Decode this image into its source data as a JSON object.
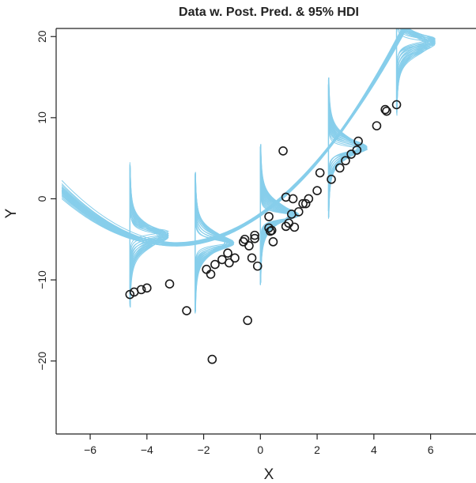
{
  "chart_data": {
    "type": "scatter",
    "title": "Data w. Post. Pred. & 95% HDI",
    "xlabel": "X",
    "ylabel": "Y",
    "xlim": [
      -7.2,
      7.6
    ],
    "ylim": [
      -29,
      21
    ],
    "xticks": [
      -6,
      -4,
      -2,
      0,
      2,
      4,
      6
    ],
    "yticks": [
      -20,
      -10,
      0,
      10,
      20
    ],
    "grid": false,
    "colors": {
      "curves": "#87CEEB",
      "points": "#1a1a1a",
      "axis": "#222222"
    },
    "points": [
      {
        "x": -4.6,
        "y": -11.8
      },
      {
        "x": -4.45,
        "y": -11.5
      },
      {
        "x": -4.2,
        "y": -11.2
      },
      {
        "x": -4.0,
        "y": -11.0
      },
      {
        "x": -3.2,
        "y": -10.5
      },
      {
        "x": -2.6,
        "y": -13.8
      },
      {
        "x": -1.9,
        "y": -8.7
      },
      {
        "x": -1.75,
        "y": -9.3
      },
      {
        "x": -1.6,
        "y": -8.1
      },
      {
        "x": -1.35,
        "y": -7.5
      },
      {
        "x": -1.15,
        "y": -6.7
      },
      {
        "x": -1.1,
        "y": -7.9
      },
      {
        "x": -0.9,
        "y": -7.3
      },
      {
        "x": -1.7,
        "y": -19.8
      },
      {
        "x": -0.6,
        "y": -5.3
      },
      {
        "x": -0.55,
        "y": -5.0
      },
      {
        "x": -0.4,
        "y": -5.8
      },
      {
        "x": -0.2,
        "y": -4.9
      },
      {
        "x": -0.2,
        "y": -4.5
      },
      {
        "x": -0.1,
        "y": -8.3
      },
      {
        "x": -0.3,
        "y": -7.3
      },
      {
        "x": -0.45,
        "y": -15.0
      },
      {
        "x": 0.3,
        "y": -2.2
      },
      {
        "x": 0.3,
        "y": -3.6
      },
      {
        "x": 0.35,
        "y": -4.0
      },
      {
        "x": 0.4,
        "y": -3.9
      },
      {
        "x": 0.45,
        "y": -5.3
      },
      {
        "x": 0.8,
        "y": 5.9
      },
      {
        "x": 0.9,
        "y": 0.2
      },
      {
        "x": 0.9,
        "y": -3.4
      },
      {
        "x": 1.0,
        "y": -3.0
      },
      {
        "x": 1.1,
        "y": -1.9
      },
      {
        "x": 1.15,
        "y": 0.0
      },
      {
        "x": 1.2,
        "y": -3.5
      },
      {
        "x": 1.35,
        "y": -1.6
      },
      {
        "x": 1.5,
        "y": -0.6
      },
      {
        "x": 1.6,
        "y": -0.6
      },
      {
        "x": 1.7,
        "y": 0.0
      },
      {
        "x": 2.0,
        "y": 1.0
      },
      {
        "x": 2.1,
        "y": 3.2
      },
      {
        "x": 2.5,
        "y": 2.4
      },
      {
        "x": 2.8,
        "y": 3.8
      },
      {
        "x": 3.0,
        "y": 4.7
      },
      {
        "x": 3.2,
        "y": 5.5
      },
      {
        "x": 3.4,
        "y": 6.0
      },
      {
        "x": 3.45,
        "y": 7.1
      },
      {
        "x": 4.1,
        "y": 9.0
      },
      {
        "x": 4.4,
        "y": 11.0
      },
      {
        "x": 4.45,
        "y": 10.8
      },
      {
        "x": 4.8,
        "y": 11.6
      }
    ],
    "posterior_curves": {
      "count": 22,
      "form": "b0 + b1*x + b2*x^2",
      "b0_range": [
        -2.15,
        -1.75
      ],
      "b1_range": [
        2.38,
        2.52
      ],
      "b2_range": [
        0.39,
        0.43
      ]
    },
    "predictive_densities": {
      "x_positions": [
        -4.6,
        -2.3,
        0.0,
        2.4,
        4.8
      ],
      "scale_range": [
        0.4,
        1.5
      ],
      "nu": 2
    }
  }
}
